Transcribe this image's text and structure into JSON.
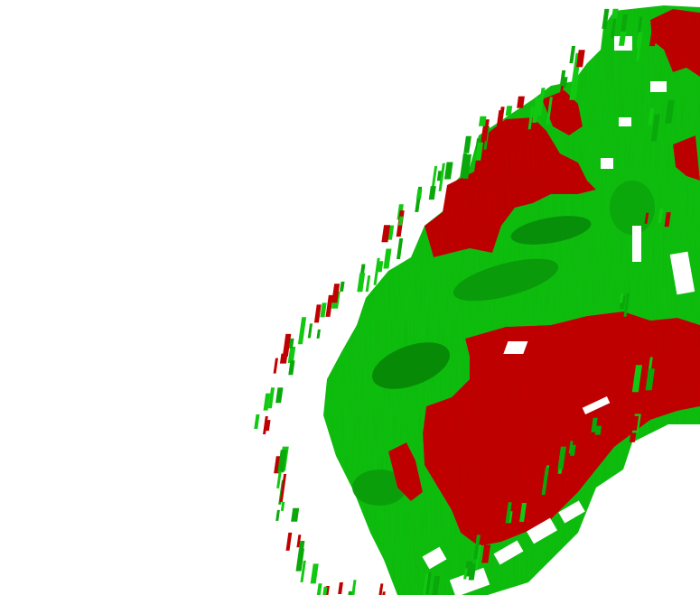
{
  "scene": {
    "background_color": "#ffffff",
    "colors": {
      "green_light": "#12c912",
      "green_mid": "#0aa80a",
      "green_dark": "#067a06",
      "red": "#c00000",
      "red_dark": "#a80000"
    }
  }
}
